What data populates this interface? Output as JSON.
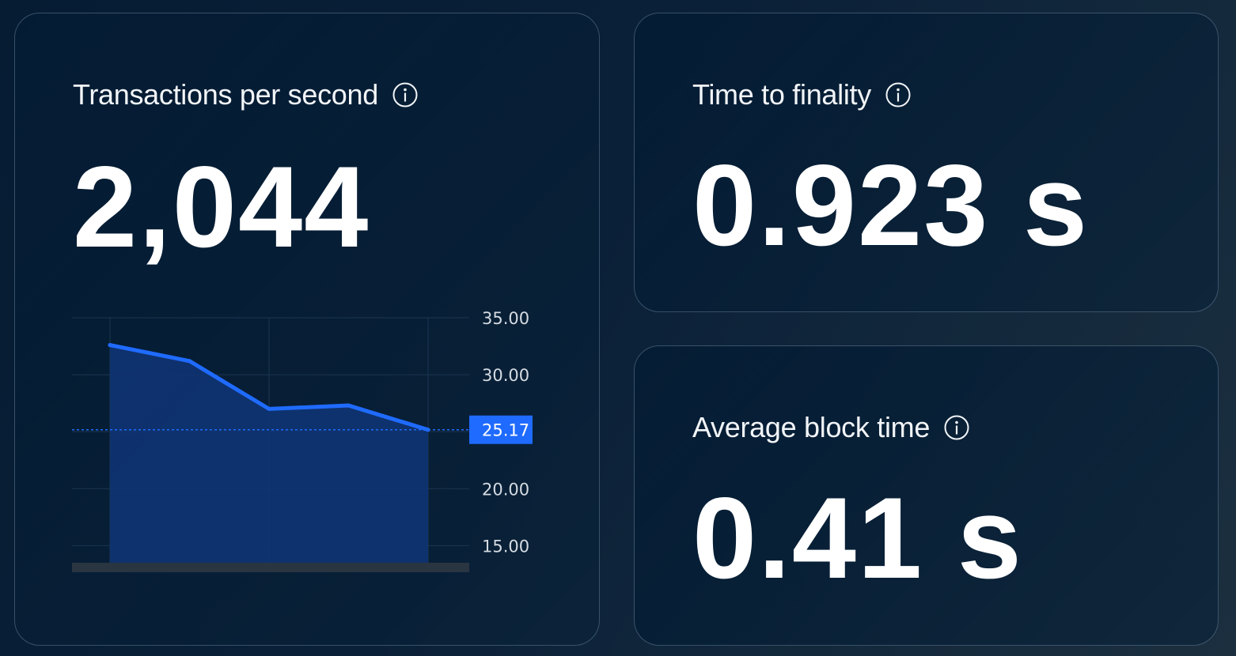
{
  "cards": {
    "tps": {
      "title": "Transactions per second",
      "value": "2,044"
    },
    "time_to_finality": {
      "title": "Time to finality",
      "value": "0.923 s"
    },
    "avg_block_time": {
      "title": "Average block time",
      "value": "0.41 s"
    }
  },
  "icons": {
    "info": "info-circle-icon"
  },
  "colors": {
    "line": "#1f6bff",
    "area": "#0f3473",
    "badge": "#1f6bff",
    "grid": "#1c3550"
  },
  "chart_data": {
    "type": "area",
    "x": [
      1,
      2,
      3,
      4,
      5
    ],
    "values": [
      32.6,
      31.2,
      27.0,
      27.3,
      25.17
    ],
    "last_value_label": "25.17",
    "ylim": [
      13.5,
      35.0
    ],
    "y_ticks": [
      35.0,
      30.0,
      20.0,
      15.0
    ],
    "y_tick_labels": [
      "35.00",
      "30.00",
      "20.00",
      "15.00"
    ],
    "y_axis_position": "right",
    "grid": true
  }
}
